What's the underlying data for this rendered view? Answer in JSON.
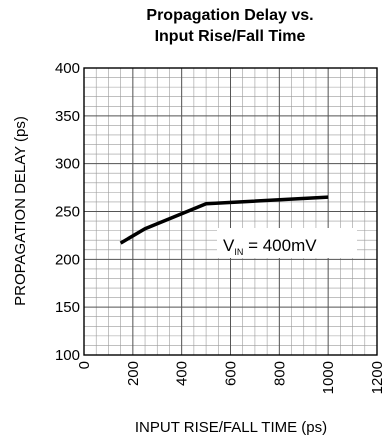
{
  "chart_data": {
    "type": "line",
    "title": "Propagation Delay vs.",
    "subtitle": "Input Rise/Fall Time",
    "xlabel": "INPUT RISE/FALL TIME (ps)",
    "ylabel": "PROPAGATION DELAY (ps)",
    "xlim": [
      0,
      1200
    ],
    "ylim": [
      100,
      400
    ],
    "x_ticks": [
      "0",
      "200",
      "400",
      "600",
      "800",
      "1000",
      "1200"
    ],
    "y_ticks": [
      "100",
      "150",
      "200",
      "250",
      "300",
      "350",
      "400"
    ],
    "grid": true,
    "series": [
      {
        "x": [
          150,
          250,
          500,
          1000
        ],
        "y": [
          217,
          232,
          258,
          265
        ]
      }
    ],
    "annotation": {
      "prefix": "V",
      "subscript": "IN",
      "suffix": " = 400mV"
    }
  }
}
